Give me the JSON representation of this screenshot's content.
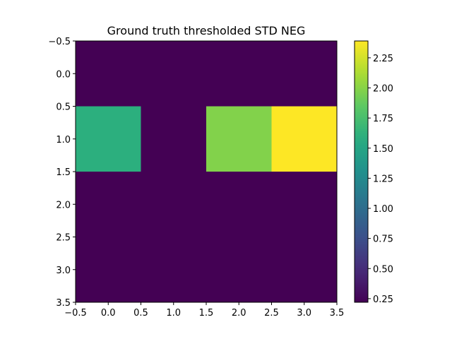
{
  "chart_data": {
    "type": "heatmap",
    "title": "Ground truth thresholded STD NEG",
    "x_ticks": [
      "−0.5",
      "0.0",
      "0.5",
      "1.0",
      "1.5",
      "2.0",
      "2.5",
      "3.0",
      "3.5"
    ],
    "y_ticks": [
      "−0.5",
      "0.0",
      "0.5",
      "1.0",
      "1.5",
      "2.0",
      "2.5",
      "3.0",
      "3.5"
    ],
    "xlim": [
      -0.5,
      3.5
    ],
    "ylim": [
      3.5,
      -0.5
    ],
    "rows": 4,
    "cols": 4,
    "values": [
      [
        0.22,
        0.22,
        0.22,
        0.22
      ],
      [
        1.6,
        0.22,
        1.98,
        2.39
      ],
      [
        0.22,
        0.22,
        0.22,
        0.22
      ],
      [
        0.22,
        0.22,
        0.22,
        0.22
      ]
    ],
    "colormap": "viridis",
    "colorbar": {
      "min": 0.22,
      "max": 2.39,
      "ticks": [
        "0.25",
        "0.50",
        "0.75",
        "1.00",
        "1.25",
        "1.50",
        "1.75",
        "2.00",
        "2.25"
      ]
    },
    "grid": false
  }
}
